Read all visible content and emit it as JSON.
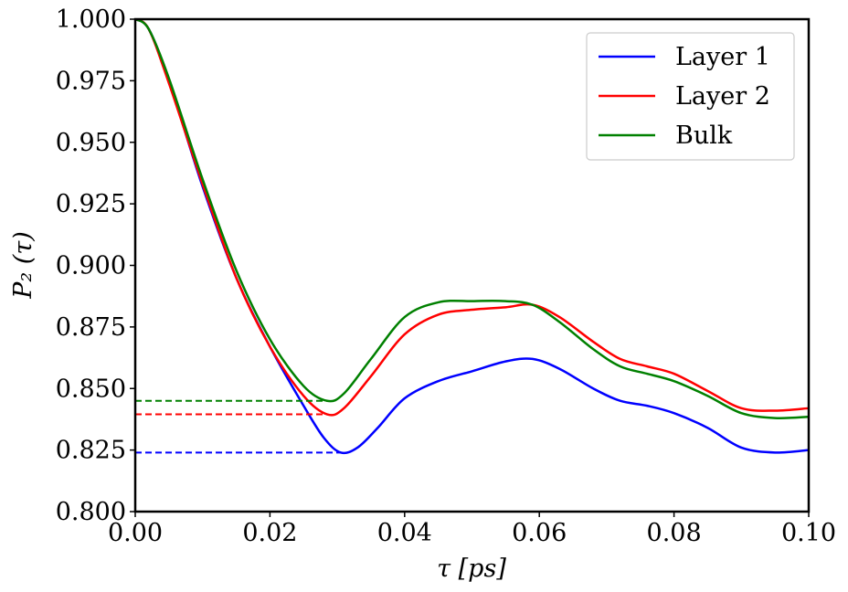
{
  "chart_data": {
    "type": "line",
    "title": "",
    "xlabel": "τ [ps]",
    "ylabel": "P₂ (τ)",
    "xlim": [
      0.0,
      0.1
    ],
    "ylim": [
      0.8,
      1.0
    ],
    "x_ticks": [
      "0.00",
      "0.02",
      "0.04",
      "0.06",
      "0.08",
      "0.10"
    ],
    "y_ticks": [
      "0.800",
      "0.825",
      "0.850",
      "0.875",
      "0.900",
      "0.925",
      "0.950",
      "0.975",
      "1.000"
    ],
    "grid": false,
    "legend_position": "top-right",
    "series": [
      {
        "name": "Layer 1",
        "color": "#0000ff",
        "x": [
          0.0,
          0.002,
          0.005,
          0.01,
          0.015,
          0.02,
          0.025,
          0.028,
          0.0305,
          0.033,
          0.036,
          0.04,
          0.045,
          0.05,
          0.055,
          0.059,
          0.063,
          0.068,
          0.072,
          0.076,
          0.08,
          0.085,
          0.09,
          0.095,
          0.1
        ],
        "y": [
          1.0,
          0.996,
          0.975,
          0.932,
          0.895,
          0.867,
          0.843,
          0.83,
          0.824,
          0.826,
          0.834,
          0.846,
          0.853,
          0.857,
          0.861,
          0.862,
          0.858,
          0.85,
          0.845,
          0.843,
          0.84,
          0.834,
          0.826,
          0.824,
          0.825
        ]
      },
      {
        "name": "Layer 2",
        "color": "#ff0000",
        "x": [
          0.0,
          0.002,
          0.005,
          0.01,
          0.015,
          0.02,
          0.025,
          0.0285,
          0.031,
          0.035,
          0.04,
          0.045,
          0.05,
          0.055,
          0.059,
          0.063,
          0.068,
          0.072,
          0.076,
          0.08,
          0.085,
          0.09,
          0.095,
          0.1
        ],
        "y": [
          1.0,
          0.996,
          0.974,
          0.933,
          0.895,
          0.867,
          0.847,
          0.8395,
          0.842,
          0.855,
          0.872,
          0.88,
          0.882,
          0.883,
          0.884,
          0.879,
          0.869,
          0.862,
          0.859,
          0.856,
          0.849,
          0.842,
          0.841,
          0.842
        ]
      },
      {
        "name": "Bulk",
        "color": "#008000",
        "x": [
          0.0,
          0.002,
          0.005,
          0.01,
          0.015,
          0.02,
          0.025,
          0.0285,
          0.031,
          0.035,
          0.04,
          0.045,
          0.05,
          0.055,
          0.059,
          0.063,
          0.068,
          0.072,
          0.076,
          0.08,
          0.085,
          0.09,
          0.095,
          0.1
        ],
        "y": [
          1.0,
          0.996,
          0.976,
          0.935,
          0.898,
          0.87,
          0.851,
          0.845,
          0.848,
          0.862,
          0.879,
          0.885,
          0.8855,
          0.8855,
          0.884,
          0.877,
          0.866,
          0.859,
          0.856,
          0.853,
          0.847,
          0.84,
          0.838,
          0.8385
        ]
      }
    ],
    "reference_lines": [
      {
        "color": "#008000",
        "style": "dashed",
        "y": 0.845,
        "x_from": 0.0,
        "x_to": 0.0285
      },
      {
        "color": "#ff0000",
        "style": "dashed",
        "y": 0.8395,
        "x_from": 0.0,
        "x_to": 0.0285
      },
      {
        "color": "#0000ff",
        "style": "dashed",
        "y": 0.824,
        "x_from": 0.0,
        "x_to": 0.0305
      }
    ]
  }
}
